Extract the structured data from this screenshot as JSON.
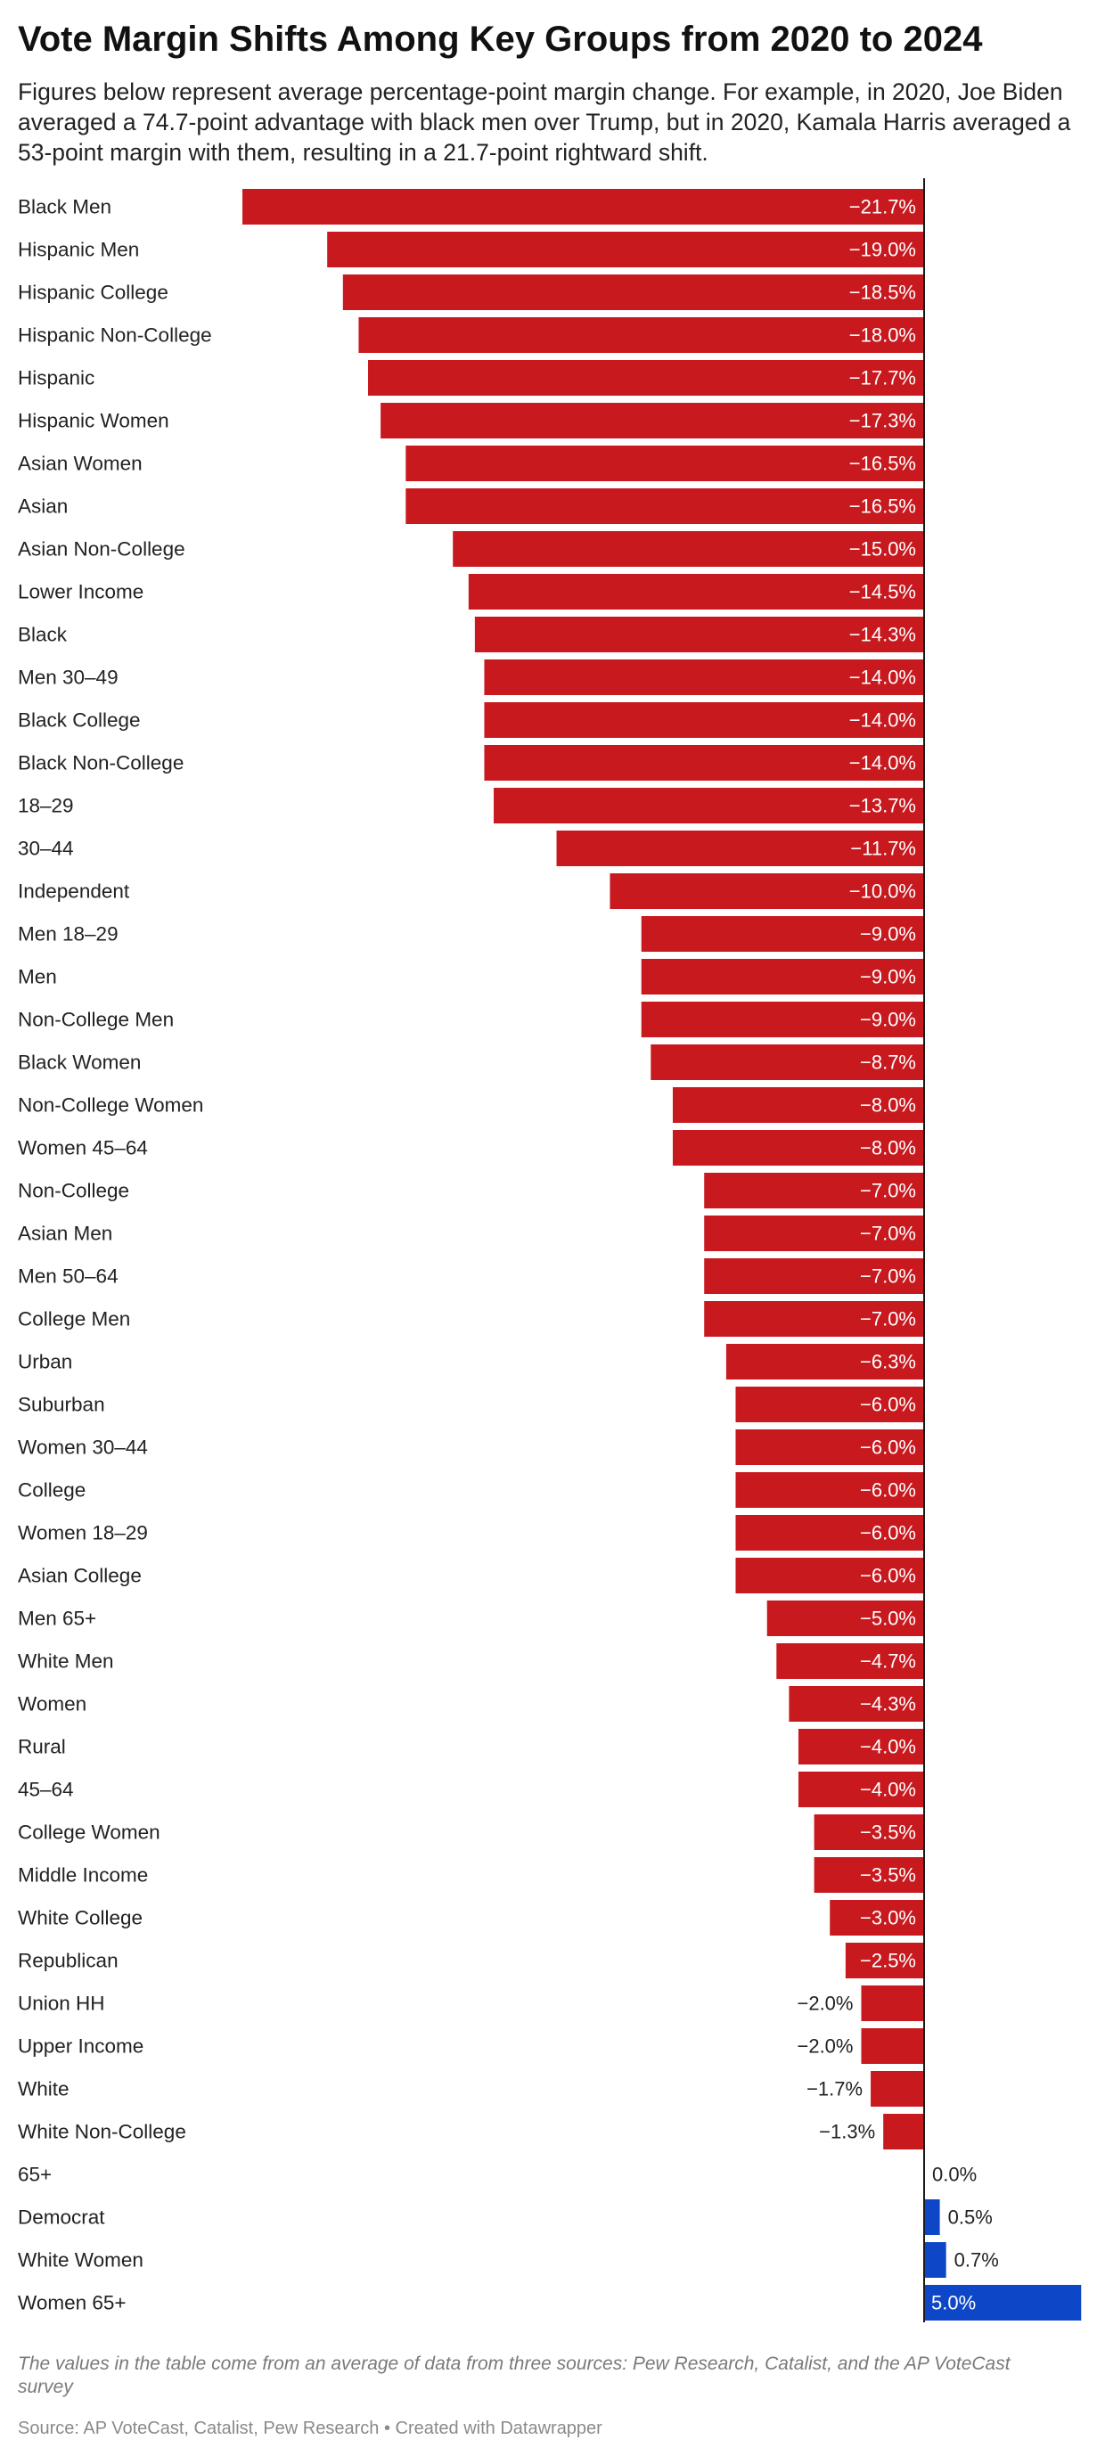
{
  "chart_data": {
    "type": "bar",
    "orientation": "horizontal",
    "title": "Vote Margin Shifts Among Key Groups from 2020 to 2024",
    "subtitle": "Figures below represent average percentage-point margin change. For example, in 2020, Joe Biden averaged a 74.7-point advantage with black men over Trump, but in 2020, Kamala Harris averaged a 53-point margin with them, resulting in a 21.7-point rightward shift.",
    "categories": [
      "Black Men",
      "Hispanic Men",
      "Hispanic College",
      "Hispanic Non-College",
      "Hispanic",
      "Hispanic Women",
      "Asian Women",
      "Asian",
      "Asian Non-College",
      "Lower Income",
      "Black",
      "Men 30–49",
      "Black College",
      "Black Non-College",
      "18–29",
      "30–44",
      "Independent",
      "Men 18–29",
      "Men",
      "Non-College Men",
      "Black Women",
      "Non-College Women",
      "Women 45–64",
      "Non-College",
      "Asian Men",
      "Men 50–64",
      "College Men",
      "Urban",
      "Suburban",
      "Women 30–44",
      "College",
      "Women 18–29",
      "Asian College",
      "Men 65+",
      "White Men",
      "Women",
      "Rural",
      "45–64",
      "College Women",
      "Middle Income",
      "White College",
      "Republican",
      "Union HH",
      "Upper Income",
      "White",
      "White Non-College",
      "65+",
      "Democrat",
      "White Women",
      "Women 65+"
    ],
    "values": [
      -21.7,
      -19.0,
      -18.5,
      -18.0,
      -17.7,
      -17.3,
      -16.5,
      -16.5,
      -15.0,
      -14.5,
      -14.3,
      -14.0,
      -14.0,
      -14.0,
      -13.7,
      -11.7,
      -10.0,
      -9.0,
      -9.0,
      -9.0,
      -8.7,
      -8.0,
      -8.0,
      -7.0,
      -7.0,
      -7.0,
      -7.0,
      -6.3,
      -6.0,
      -6.0,
      -6.0,
      -6.0,
      -6.0,
      -5.0,
      -4.7,
      -4.3,
      -4.0,
      -4.0,
      -3.5,
      -3.5,
      -3.0,
      -2.5,
      -2.0,
      -2.0,
      -1.7,
      -1.3,
      0.0,
      0.5,
      0.7,
      5.0
    ],
    "value_labels": [
      "−21.7%",
      "−19.0%",
      "−18.5%",
      "−18.0%",
      "−17.7%",
      "−17.3%",
      "−16.5%",
      "−16.5%",
      "−15.0%",
      "−14.5%",
      "−14.3%",
      "−14.0%",
      "−14.0%",
      "−14.0%",
      "−13.7%",
      "−11.7%",
      "−10.0%",
      "−9.0%",
      "−9.0%",
      "−9.0%",
      "−8.7%",
      "−8.0%",
      "−8.0%",
      "−7.0%",
      "−7.0%",
      "−7.0%",
      "−7.0%",
      "−6.3%",
      "−6.0%",
      "−6.0%",
      "−6.0%",
      "−6.0%",
      "−6.0%",
      "−5.0%",
      "−4.7%",
      "−4.3%",
      "−4.0%",
      "−4.0%",
      "−3.5%",
      "−3.5%",
      "−3.0%",
      "−2.5%",
      "−2.0%",
      "−2.0%",
      "−1.7%",
      "−1.3%",
      "0.0%",
      "0.5%",
      "0.7%",
      "5.0%"
    ],
    "xlim": [
      -21.7,
      5.0
    ],
    "colors": {
      "negative": "#c8191f",
      "positive": "#0d47c8",
      "axis": "#1a1a1a",
      "label_inside": "#ffffff",
      "label_outside": "#222222",
      "category": "#222222"
    },
    "notes": "The values in the table come from an average of data from three sources: Pew Research, Catalist, and the AP VoteCast survey",
    "source": "Source: AP VoteCast, Catalist, Pew Research • Created with Datawrapper"
  }
}
